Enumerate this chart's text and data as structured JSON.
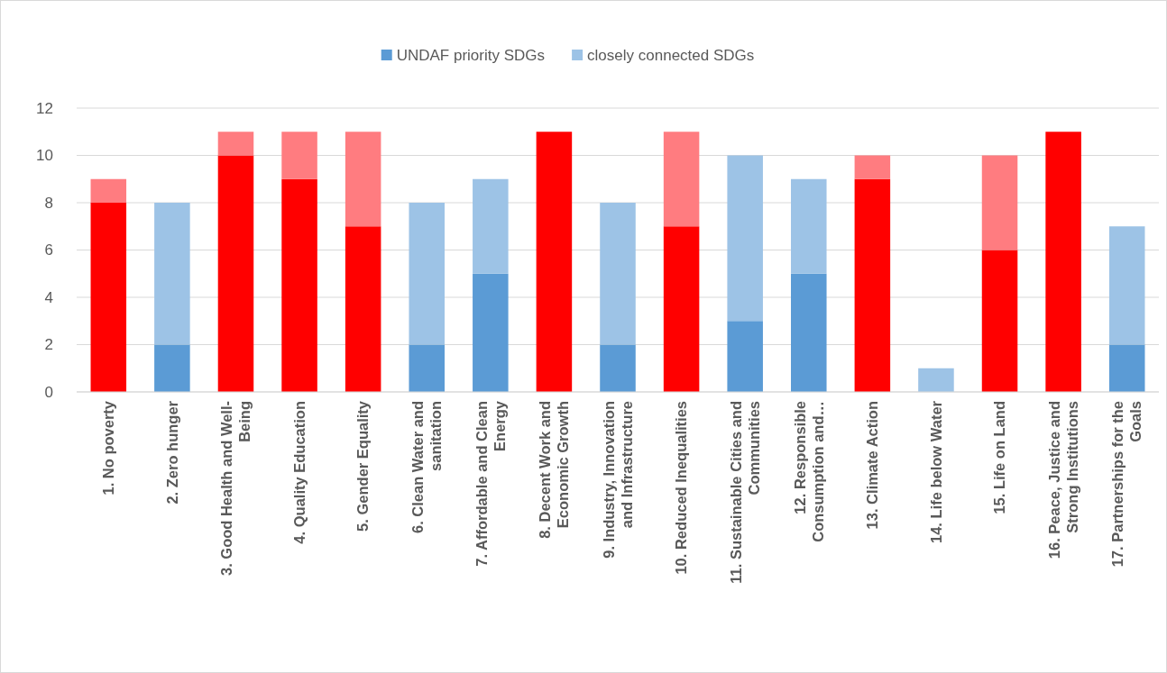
{
  "chart_data": {
    "type": "bar",
    "stacked": true,
    "categories": [
      "1. No poverty",
      "2. Zero hunger",
      "3. Good Health and Well-Being",
      "4. Quality Education",
      "5. Gender Equality",
      "6. Clean Water and sanitation",
      "7. Affordable and Clean Energy",
      "8. Decent Work and Economic Growth",
      "9. Industry, Innovation and Infrastructure",
      "10. Reduced Inequalities",
      "11. Sustainable Cities and Communities",
      "12. Responsible Consumption and…",
      "13. Climate Action",
      "14. Life below Water",
      "15. Life on Land",
      "16. Peace, Justice and Strong Institutions",
      "17. Partnerships for the Goals"
    ],
    "series": [
      {
        "name": "UNDAF priority SDGs",
        "color": "#5b9bd5",
        "values": [
          8,
          2,
          10,
          9,
          7,
          2,
          5,
          11,
          2,
          7,
          3,
          5,
          9,
          0,
          6,
          11,
          2
        ],
        "colors": [
          "#ff0000",
          "#5b9bd5",
          "#ff0000",
          "#ff0000",
          "#ff0000",
          "#5b9bd5",
          "#5b9bd5",
          "#ff0000",
          "#5b9bd5",
          "#ff0000",
          "#5b9bd5",
          "#5b9bd5",
          "#ff0000",
          "#5b9bd5",
          "#ff0000",
          "#ff0000",
          "#5b9bd5"
        ]
      },
      {
        "name": "closely connected SDGs",
        "color": "#9dc3e6",
        "values": [
          1,
          6,
          1,
          2,
          4,
          6,
          4,
          0,
          6,
          4,
          7,
          4,
          1,
          1,
          4,
          0,
          5
        ],
        "colors": [
          "#ff7c80",
          "#9dc3e6",
          "#ff7c80",
          "#ff7c80",
          "#ff7c80",
          "#9dc3e6",
          "#9dc3e6",
          "#ff7c80",
          "#9dc3e6",
          "#ff7c80",
          "#9dc3e6",
          "#9dc3e6",
          "#ff7c80",
          "#9dc3e6",
          "#ff7c80",
          "#ff7c80",
          "#9dc3e6"
        ]
      }
    ],
    "ylim": [
      0,
      12
    ],
    "yticks": [
      0,
      2,
      4,
      6,
      8,
      10,
      12
    ],
    "grid": "y",
    "legend": "top"
  }
}
